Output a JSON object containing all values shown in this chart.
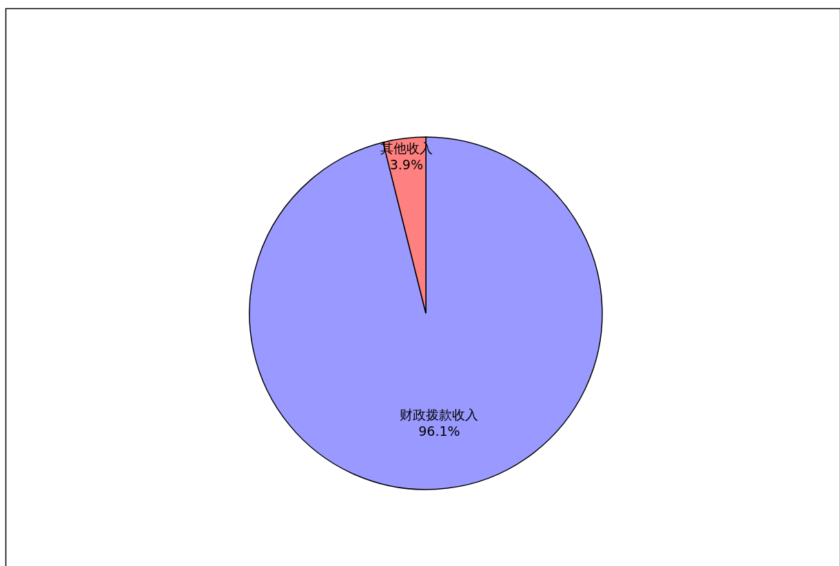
{
  "chart_data": {
    "type": "pie",
    "categories": [
      "财政拨款收入",
      "其他收入"
    ],
    "values": [
      96.1,
      3.9
    ],
    "colors": [
      "#9999ff",
      "#ff8080"
    ],
    "value_labels": [
      "96.1%",
      "3.9%"
    ]
  }
}
